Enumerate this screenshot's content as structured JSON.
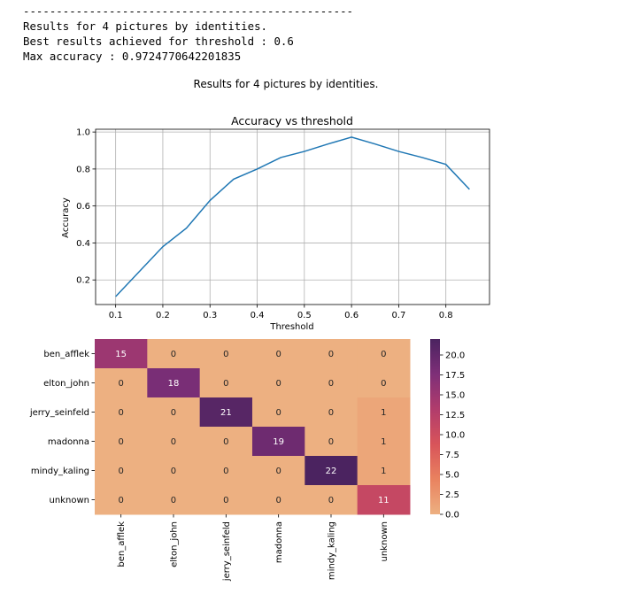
{
  "console": {
    "separator": "--------------------------------------------------",
    "line1": "Results for 4 pictures by identities.",
    "line2": "Best results achieved for threshold : 0.6",
    "line3": "Max accuracy : 0.9724770642201835"
  },
  "figure": {
    "suptitle": "Results for 4 pictures by identities."
  },
  "chart_data": [
    {
      "type": "line",
      "title": "Accuracy vs threshold",
      "xlabel": "Threshold",
      "ylabel": "Accuracy",
      "x": [
        0.1,
        0.2,
        0.25,
        0.3,
        0.35,
        0.4,
        0.45,
        0.5,
        0.55,
        0.6,
        0.65,
        0.7,
        0.75,
        0.8,
        0.85
      ],
      "series": [
        {
          "values": [
            0.11,
            0.38,
            0.48,
            0.63,
            0.745,
            0.8,
            0.862,
            0.895,
            0.935,
            0.9725,
            0.935,
            0.895,
            0.862,
            0.825,
            0.69
          ]
        }
      ],
      "xticks": [
        "0.1",
        "0.2",
        "0.3",
        "0.4",
        "0.5",
        "0.6",
        "0.7",
        "0.8"
      ],
      "xtick_values": [
        0.1,
        0.2,
        0.3,
        0.4,
        0.5,
        0.6,
        0.7,
        0.8
      ],
      "yticks": [
        "0.2",
        "0.4",
        "0.6",
        "0.8",
        "1.0"
      ],
      "ytick_values": [
        0.2,
        0.4,
        0.6,
        0.8,
        1.0
      ],
      "xlim": [
        0.0575,
        0.8925
      ],
      "ylim": [
        0.067,
        1.015
      ],
      "grid": true,
      "color": "#1f77b4"
    },
    {
      "type": "heatmap",
      "rows": [
        "ben_afflek",
        "elton_john",
        "jerry_seinfeld",
        "madonna",
        "mindy_kaling",
        "unknown"
      ],
      "columns": [
        "ben_afflek",
        "elton_john",
        "jerry_seinfeld",
        "madonna",
        "mindy_kaling",
        "unknown"
      ],
      "values": [
        [
          15,
          0,
          0,
          0,
          0,
          0
        ],
        [
          0,
          18,
          0,
          0,
          0,
          0
        ],
        [
          0,
          0,
          21,
          0,
          0,
          1
        ],
        [
          0,
          0,
          0,
          19,
          0,
          1
        ],
        [
          0,
          0,
          0,
          0,
          22,
          1
        ],
        [
          0,
          0,
          0,
          0,
          0,
          11
        ]
      ],
      "colormap": "flare",
      "vmin": 0,
      "vmax": 22,
      "colorbar_ticks": [
        "0.0",
        "2.5",
        "5.0",
        "7.5",
        "10.0",
        "12.5",
        "15.0",
        "17.5",
        "20.0"
      ],
      "colorbar_tick_values": [
        0,
        2.5,
        5,
        7.5,
        10,
        12.5,
        15,
        17.5,
        20
      ]
    }
  ]
}
